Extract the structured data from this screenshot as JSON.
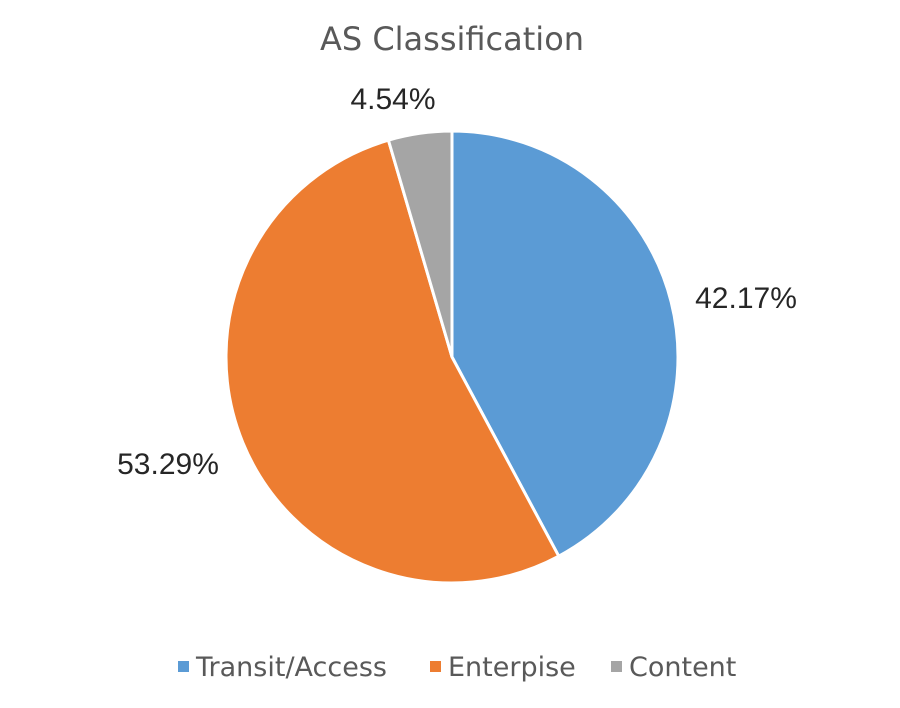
{
  "chart_data": {
    "type": "pie",
    "title": "AS Classification",
    "categories": [
      "Transit/Access",
      "Enterpise",
      "Content"
    ],
    "values": [
      42.17,
      53.29,
      4.54
    ],
    "unit": "%",
    "data_labels": [
      "42.17%",
      "53.29%",
      "4.54%"
    ],
    "colors": [
      "#5B9BD5",
      "#ED7D31",
      "#A5A5A5"
    ],
    "start_angle": "12 o'clock",
    "direction": "clockwise",
    "legend_position": "bottom"
  }
}
